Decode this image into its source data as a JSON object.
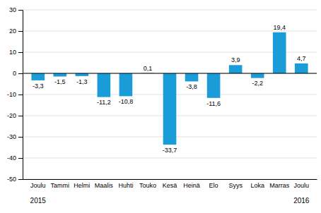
{
  "chart_data": {
    "type": "bar",
    "categories": [
      "Joulu",
      "Tammi",
      "Helmi",
      "Maalis",
      "Huhti",
      "Touko",
      "Kesä",
      "Heinä",
      "Elo",
      "Syys",
      "Loka",
      "Marras",
      "Joulu"
    ],
    "values": [
      -3.3,
      -1.5,
      -1.3,
      -11.2,
      -10.8,
      0.1,
      -33.7,
      -3.8,
      -11.6,
      3.9,
      -2.2,
      19.4,
      4.7
    ],
    "value_labels": [
      "-3,3",
      "-1,5",
      "-1,3",
      "-11,2",
      "-10,8",
      "0,1",
      "-33,7",
      "-3,8",
      "-11,6",
      "3,9",
      "-2,2",
      "19,4",
      "4,7"
    ],
    "color": "#1a9cd8",
    "ylim": [
      -50,
      30
    ],
    "yticks": [
      -50,
      -40,
      -30,
      -20,
      -10,
      0,
      10,
      20,
      30
    ],
    "grid": true,
    "data_labels": true,
    "annotations": [
      {
        "text": "2015",
        "index": 0
      },
      {
        "text": "2016",
        "index": 12
      }
    ]
  }
}
